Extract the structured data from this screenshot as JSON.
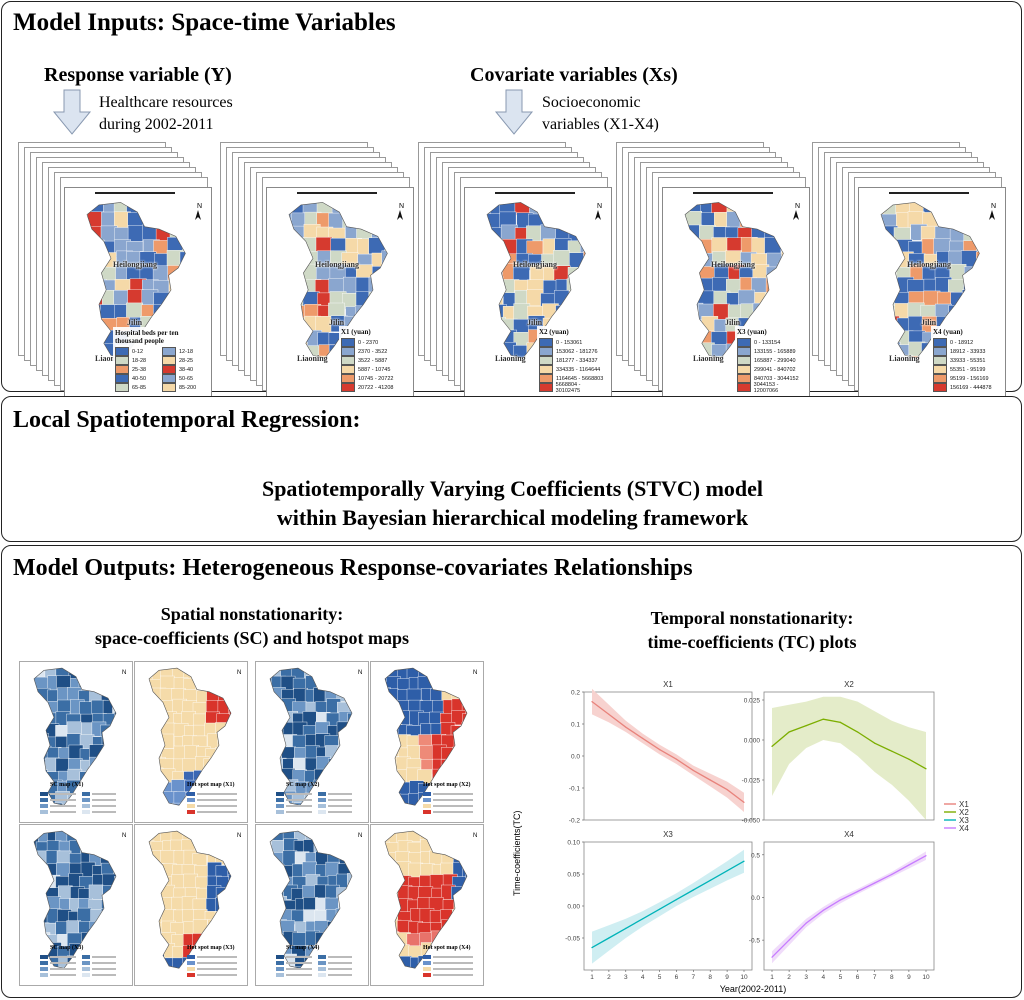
{
  "top": {
    "title": "Model Inputs: Space-time Variables",
    "response_label": "Response variable (Y)",
    "response_desc_1": "Healthcare resources",
    "response_desc_2": "during 2002-2011",
    "covariate_label": "Covariate variables (Xs)",
    "covariate_desc_1": "Socioeconomic",
    "covariate_desc_2": "variables (X1-X4)",
    "provinces": [
      "Heilongjiang",
      "Jilin",
      "Liaoning"
    ],
    "maps": [
      {
        "legend_title": "Hospital beds per ten thousand people",
        "entries": [
          "0-12",
          "12-18",
          "18-28",
          "28-25",
          "25-38",
          "38-40",
          "40-50",
          "50-65",
          "65-85",
          "85-200"
        ]
      },
      {
        "legend_title": "X1 (yuan)",
        "entries": [
          "0 - 2370",
          "2370 - 3522",
          "3522 - 5887",
          "5887 - 10745",
          "10745 - 20722",
          "20722 - 41208"
        ]
      },
      {
        "legend_title": "X2 (yuan)",
        "entries": [
          "0 - 153061",
          "153062 - 181276",
          "181277 - 334337",
          "334335 - 1164644",
          "1164645 - 5668803",
          "5668804 - 30102475"
        ]
      },
      {
        "legend_title": "X3 (yuan)",
        "entries": [
          "0 - 133154",
          "133155 - 165889",
          "165887 - 299040",
          "299041 - 840702",
          "840703 - 3044152",
          "3044153 - 12007066"
        ]
      },
      {
        "legend_title": "X4 (yuan)",
        "entries": [
          "0 - 18912",
          "18912 - 33933",
          "33933 - 55351",
          "55351 - 95199",
          "95199 - 156169",
          "156169 - 444878"
        ]
      }
    ],
    "legend_colors": [
      "#3d6ab4",
      "#8aa6cf",
      "#cfd9c6",
      "#f5d9a8",
      "#ee9a6a",
      "#d63a2f"
    ]
  },
  "middle": {
    "title": "Local Spatiotemporal Regression:",
    "line1": "Spatiotemporally Varying Coefficients (STVC) model",
    "line2": "within Bayesian hierarchical modeling framework"
  },
  "bottom": {
    "title": "Model Outputs: Heterogeneous Response-covariates Relationships",
    "spatial_title_1": "Spatial nonstationarity:",
    "spatial_title_2": "space-coefficients (SC) and hotspot maps",
    "temporal_title_1": "Temporal nonstationarity:",
    "temporal_title_2": "time-coefficients (TC) plots",
    "small_maps": [
      {
        "label": "SC  map (X1)",
        "kind": "sc"
      },
      {
        "label": "Hot spot map (X1)",
        "kind": "hot1"
      },
      {
        "label": "SC  map (X2)",
        "kind": "sc"
      },
      {
        "label": "Hot spot map (X2)",
        "kind": "hot2"
      },
      {
        "label": "SC  map (X3)",
        "kind": "sc"
      },
      {
        "label": "Hot spot map (X3)",
        "kind": "hot3"
      },
      {
        "label": "SC  map (X4)",
        "kind": "sc"
      },
      {
        "label": "Hot spot map (X4)",
        "kind": "hot4"
      }
    ]
  },
  "chart_data": {
    "type": "line",
    "ylabel": "Time-coefficients(TC)",
    "xlabel": "Year(2002-2011)",
    "x": [
      1,
      2,
      3,
      4,
      5,
      6,
      7,
      8,
      9,
      10
    ],
    "legend": [
      "X1",
      "X2",
      "X3",
      "X4"
    ],
    "legend_placement": "right",
    "grid": false,
    "panels": [
      {
        "title": "X1",
        "color": "#e8837c",
        "band": "#f7d2cf",
        "ylim": [
          -0.2,
          0.2
        ],
        "yticks": [
          "0.2",
          "0.1",
          "0.0",
          "-0.1",
          "-0.2"
        ],
        "values": [
          0.17,
          0.13,
          0.09,
          0.055,
          0.02,
          -0.01,
          -0.045,
          -0.075,
          -0.105,
          -0.145
        ],
        "lower": [
          0.13,
          0.105,
          0.075,
          0.04,
          0.005,
          -0.025,
          -0.06,
          -0.095,
          -0.13,
          -0.175
        ],
        "upper": [
          0.21,
          0.16,
          0.11,
          0.07,
          0.035,
          0.005,
          -0.03,
          -0.055,
          -0.08,
          -0.115
        ]
      },
      {
        "title": "X2",
        "color": "#7cae00",
        "band": "#e4ecc9",
        "ylim": [
          -0.05,
          0.03
        ],
        "yticks": [
          "0.025",
          "0.000",
          "-0.025",
          "-0.050"
        ],
        "values": [
          -0.004,
          0.005,
          0.009,
          0.013,
          0.011,
          0.005,
          -0.002,
          -0.007,
          -0.012,
          -0.018
        ],
        "lower": [
          -0.035,
          -0.015,
          -0.005,
          0.0,
          -0.002,
          -0.01,
          -0.02,
          -0.028,
          -0.038,
          -0.05
        ],
        "upper": [
          0.02,
          0.022,
          0.024,
          0.027,
          0.027,
          0.024,
          0.018,
          0.012,
          0.008,
          0.005
        ]
      },
      {
        "title": "X3",
        "color": "#00b3b8",
        "band": "#cfeef2",
        "ylim": [
          -0.1,
          0.1
        ],
        "yticks": [
          "0.10",
          "0.05",
          "0.00",
          "-0.05"
        ],
        "values": [
          -0.065,
          -0.05,
          -0.035,
          -0.02,
          -0.005,
          0.01,
          0.025,
          0.04,
          0.055,
          0.07
        ],
        "lower": [
          -0.09,
          -0.07,
          -0.05,
          -0.032,
          -0.016,
          0.0,
          0.014,
          0.027,
          0.04,
          0.052
        ],
        "upper": [
          -0.04,
          -0.03,
          -0.02,
          -0.008,
          0.006,
          0.02,
          0.036,
          0.053,
          0.07,
          0.088
        ]
      },
      {
        "title": "X4",
        "color": "#c77cff",
        "band": "#f0dcfa",
        "ylim": [
          -0.85,
          0.65
        ],
        "yticks": [
          "0.5",
          "0.0",
          "-0.5"
        ],
        "values": [
          -0.7,
          -0.5,
          -0.3,
          -0.15,
          -0.03,
          0.07,
          0.17,
          0.27,
          0.38,
          0.49
        ],
        "lower": [
          -0.77,
          -0.56,
          -0.35,
          -0.19,
          -0.07,
          0.04,
          0.14,
          0.24,
          0.34,
          0.44
        ],
        "upper": [
          -0.63,
          -0.44,
          -0.25,
          -0.11,
          0.01,
          0.1,
          0.2,
          0.3,
          0.42,
          0.54
        ]
      }
    ]
  }
}
